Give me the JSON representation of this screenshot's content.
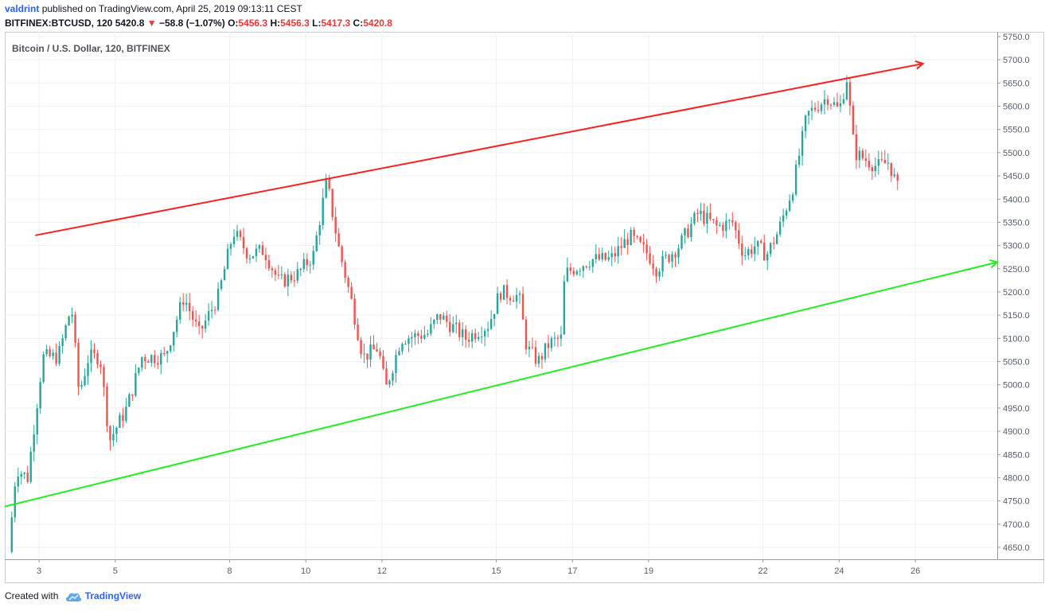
{
  "header": {
    "author": "valdrint",
    "published_text": "published on TradingView.com, April 25, 2019 09:13:11 CEST",
    "symbol": "BITFINEX:BTCUSD, 120",
    "last": "5420.8",
    "change": "−58.8 (−1.07%)",
    "o_label": "O:",
    "o_value": "5456.3",
    "h_label": "H:",
    "h_value": "5456.3",
    "l_label": "L:",
    "l_value": "5417.3",
    "c_label": "C:",
    "c_value": "5420.8"
  },
  "footer": {
    "created_with": "Created with",
    "brand": "TradingView"
  },
  "colors": {
    "up": "#26a69a",
    "down": "#ef5350",
    "resistance": "#ff1f1f",
    "support": "#22ee22",
    "grid": "#eef0f3",
    "axis_text": "#555c6b"
  },
  "chart_data": {
    "type": "candlestick",
    "title": "Bitcoin / U.S. Dollar, 120, BITFINEX",
    "x_tick_labels": [
      {
        "day": 3,
        "label": "3"
      },
      {
        "day": 5,
        "label": "5"
      },
      {
        "day": 8,
        "label": "8"
      },
      {
        "day": 10,
        "label": "10"
      },
      {
        "day": 12,
        "label": "12"
      },
      {
        "day": 15,
        "label": "15"
      },
      {
        "day": 17,
        "label": "17"
      },
      {
        "day": 19,
        "label": "19"
      },
      {
        "day": 22,
        "label": "22"
      },
      {
        "day": 24,
        "label": "24"
      },
      {
        "day": 26,
        "label": "26"
      }
    ],
    "y_ticks": [
      4650,
      4700,
      4750,
      4800,
      4850,
      4900,
      4950,
      5000,
      5050,
      5100,
      5150,
      5200,
      5250,
      5300,
      5350,
      5400,
      5450,
      5500,
      5550,
      5600,
      5650,
      5700,
      5750
    ],
    "y_tick_labels": [
      "4650.0",
      "4700.0",
      "4750.0",
      "4800.0",
      "4850.0",
      "4900.0",
      "4950.0",
      "5000.0",
      "5050.0",
      "5100.0",
      "5150.0",
      "5200.0",
      "5250.0",
      "5300.0",
      "5350.0",
      "5400.0",
      "5450.0",
      "5500.0",
      "5550.0",
      "5600.0",
      "5650.0",
      "5700.0",
      "5750.0"
    ],
    "ylim": [
      4620,
      5760
    ],
    "xlim_days": [
      2.1,
      28.15
    ],
    "grid": true,
    "closes": [
      {
        "day": 2.2,
        "close": 4640
      },
      {
        "day": 2.4,
        "close": 4820
      },
      {
        "day": 2.7,
        "close": 4800
      },
      {
        "day": 3.1,
        "close": 5060
      },
      {
        "day": 3.5,
        "close": 5060
      },
      {
        "day": 3.85,
        "close": 5170
      },
      {
        "day": 4.05,
        "close": 4980
      },
      {
        "day": 4.3,
        "close": 5060
      },
      {
        "day": 4.6,
        "close": 5060
      },
      {
        "day": 4.85,
        "close": 4880
      },
      {
        "day": 5.3,
        "close": 4950
      },
      {
        "day": 5.7,
        "close": 5060
      },
      {
        "day": 6.3,
        "close": 5060
      },
      {
        "day": 6.8,
        "close": 5190
      },
      {
        "day": 7.2,
        "close": 5110
      },
      {
        "day": 7.7,
        "close": 5190
      },
      {
        "day": 8.1,
        "close": 5330
      },
      {
        "day": 8.5,
        "close": 5280
      },
      {
        "day": 8.9,
        "close": 5290
      },
      {
        "day": 9.3,
        "close": 5220
      },
      {
        "day": 9.8,
        "close": 5240
      },
      {
        "day": 10.2,
        "close": 5280
      },
      {
        "day": 10.55,
        "close": 5440
      },
      {
        "day": 10.85,
        "close": 5300
      },
      {
        "day": 11.2,
        "close": 5180
      },
      {
        "day": 11.5,
        "close": 5060
      },
      {
        "day": 11.9,
        "close": 5080
      },
      {
        "day": 12.1,
        "close": 4990
      },
      {
        "day": 12.5,
        "close": 5100
      },
      {
        "day": 13.2,
        "close": 5110
      },
      {
        "day": 13.5,
        "close": 5150
      },
      {
        "day": 14.2,
        "close": 5100
      },
      {
        "day": 14.8,
        "close": 5130
      },
      {
        "day": 15.1,
        "close": 5200
      },
      {
        "day": 15.6,
        "close": 5190
      },
      {
        "day": 15.8,
        "close": 5080
      },
      {
        "day": 16.1,
        "close": 5050
      },
      {
        "day": 16.4,
        "close": 5090
      },
      {
        "day": 16.7,
        "close": 5100
      },
      {
        "day": 16.8,
        "close": 5240
      },
      {
        "day": 17.5,
        "close": 5270
      },
      {
        "day": 18.0,
        "close": 5270
      },
      {
        "day": 18.5,
        "close": 5320
      },
      {
        "day": 19.0,
        "close": 5280
      },
      {
        "day": 19.2,
        "close": 5250
      },
      {
        "day": 19.8,
        "close": 5300
      },
      {
        "day": 20.3,
        "close": 5370
      },
      {
        "day": 20.8,
        "close": 5340
      },
      {
        "day": 21.2,
        "close": 5350
      },
      {
        "day": 21.5,
        "close": 5280
      },
      {
        "day": 21.8,
        "close": 5300
      },
      {
        "day": 22.1,
        "close": 5280
      },
      {
        "day": 22.4,
        "close": 5330
      },
      {
        "day": 22.8,
        "close": 5430
      },
      {
        "day": 23.15,
        "close": 5580
      },
      {
        "day": 23.4,
        "close": 5600
      },
      {
        "day": 23.7,
        "close": 5620
      },
      {
        "day": 24.0,
        "close": 5590
      },
      {
        "day": 24.2,
        "close": 5660
      },
      {
        "day": 24.4,
        "close": 5500
      },
      {
        "day": 24.8,
        "close": 5480
      },
      {
        "day": 25.0,
        "close": 5470
      },
      {
        "day": 25.3,
        "close": 5480
      },
      {
        "day": 25.55,
        "close": 5420
      }
    ],
    "annotations": [
      {
        "name": "resistance-line",
        "color": "#ff1f1f",
        "from": {
          "day": 2.9,
          "price": 5322
        },
        "to": {
          "day": 24.2,
          "price": 5660
        },
        "extend_to_day": 26.2
      },
      {
        "name": "support-line",
        "color": "#22ee22",
        "from": {
          "day": 2.1,
          "price": 4738
        },
        "to": {
          "day": 12.1,
          "price": 4940
        },
        "extend_to_day": 28.15
      }
    ]
  }
}
